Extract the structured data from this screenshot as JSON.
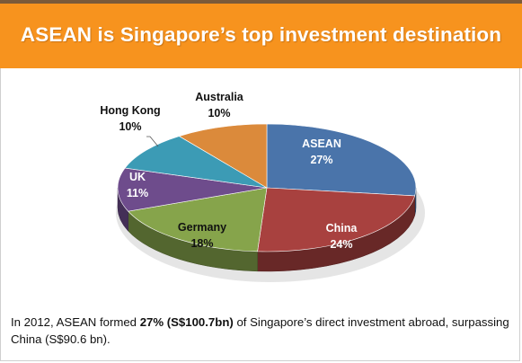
{
  "header": {
    "title": "ASEAN is Singapore’s top investment destination"
  },
  "chart_data": {
    "type": "pie",
    "title": "",
    "categories": [
      "ASEAN",
      "China",
      "Germany",
      "UK",
      "Hong Kong",
      "Australia"
    ],
    "values": [
      27,
      24,
      18,
      11,
      10,
      10
    ],
    "labels": [
      "27%",
      "24%",
      "18%",
      "11%",
      "10%",
      "10%"
    ],
    "colors": [
      "#4a74aa",
      "#a8413f",
      "#86a44b",
      "#6e4c8c",
      "#3c9bb5",
      "#db8a3b"
    ],
    "style": "3d-exploded-none",
    "legend": "none"
  },
  "caption": {
    "part1": "In 2012, ASEAN formed ",
    "bold": "27% (S$100.7bn)",
    "part2": " of Singapore’s direct investment abroad, surpassing China (S$90.6 bn)."
  }
}
